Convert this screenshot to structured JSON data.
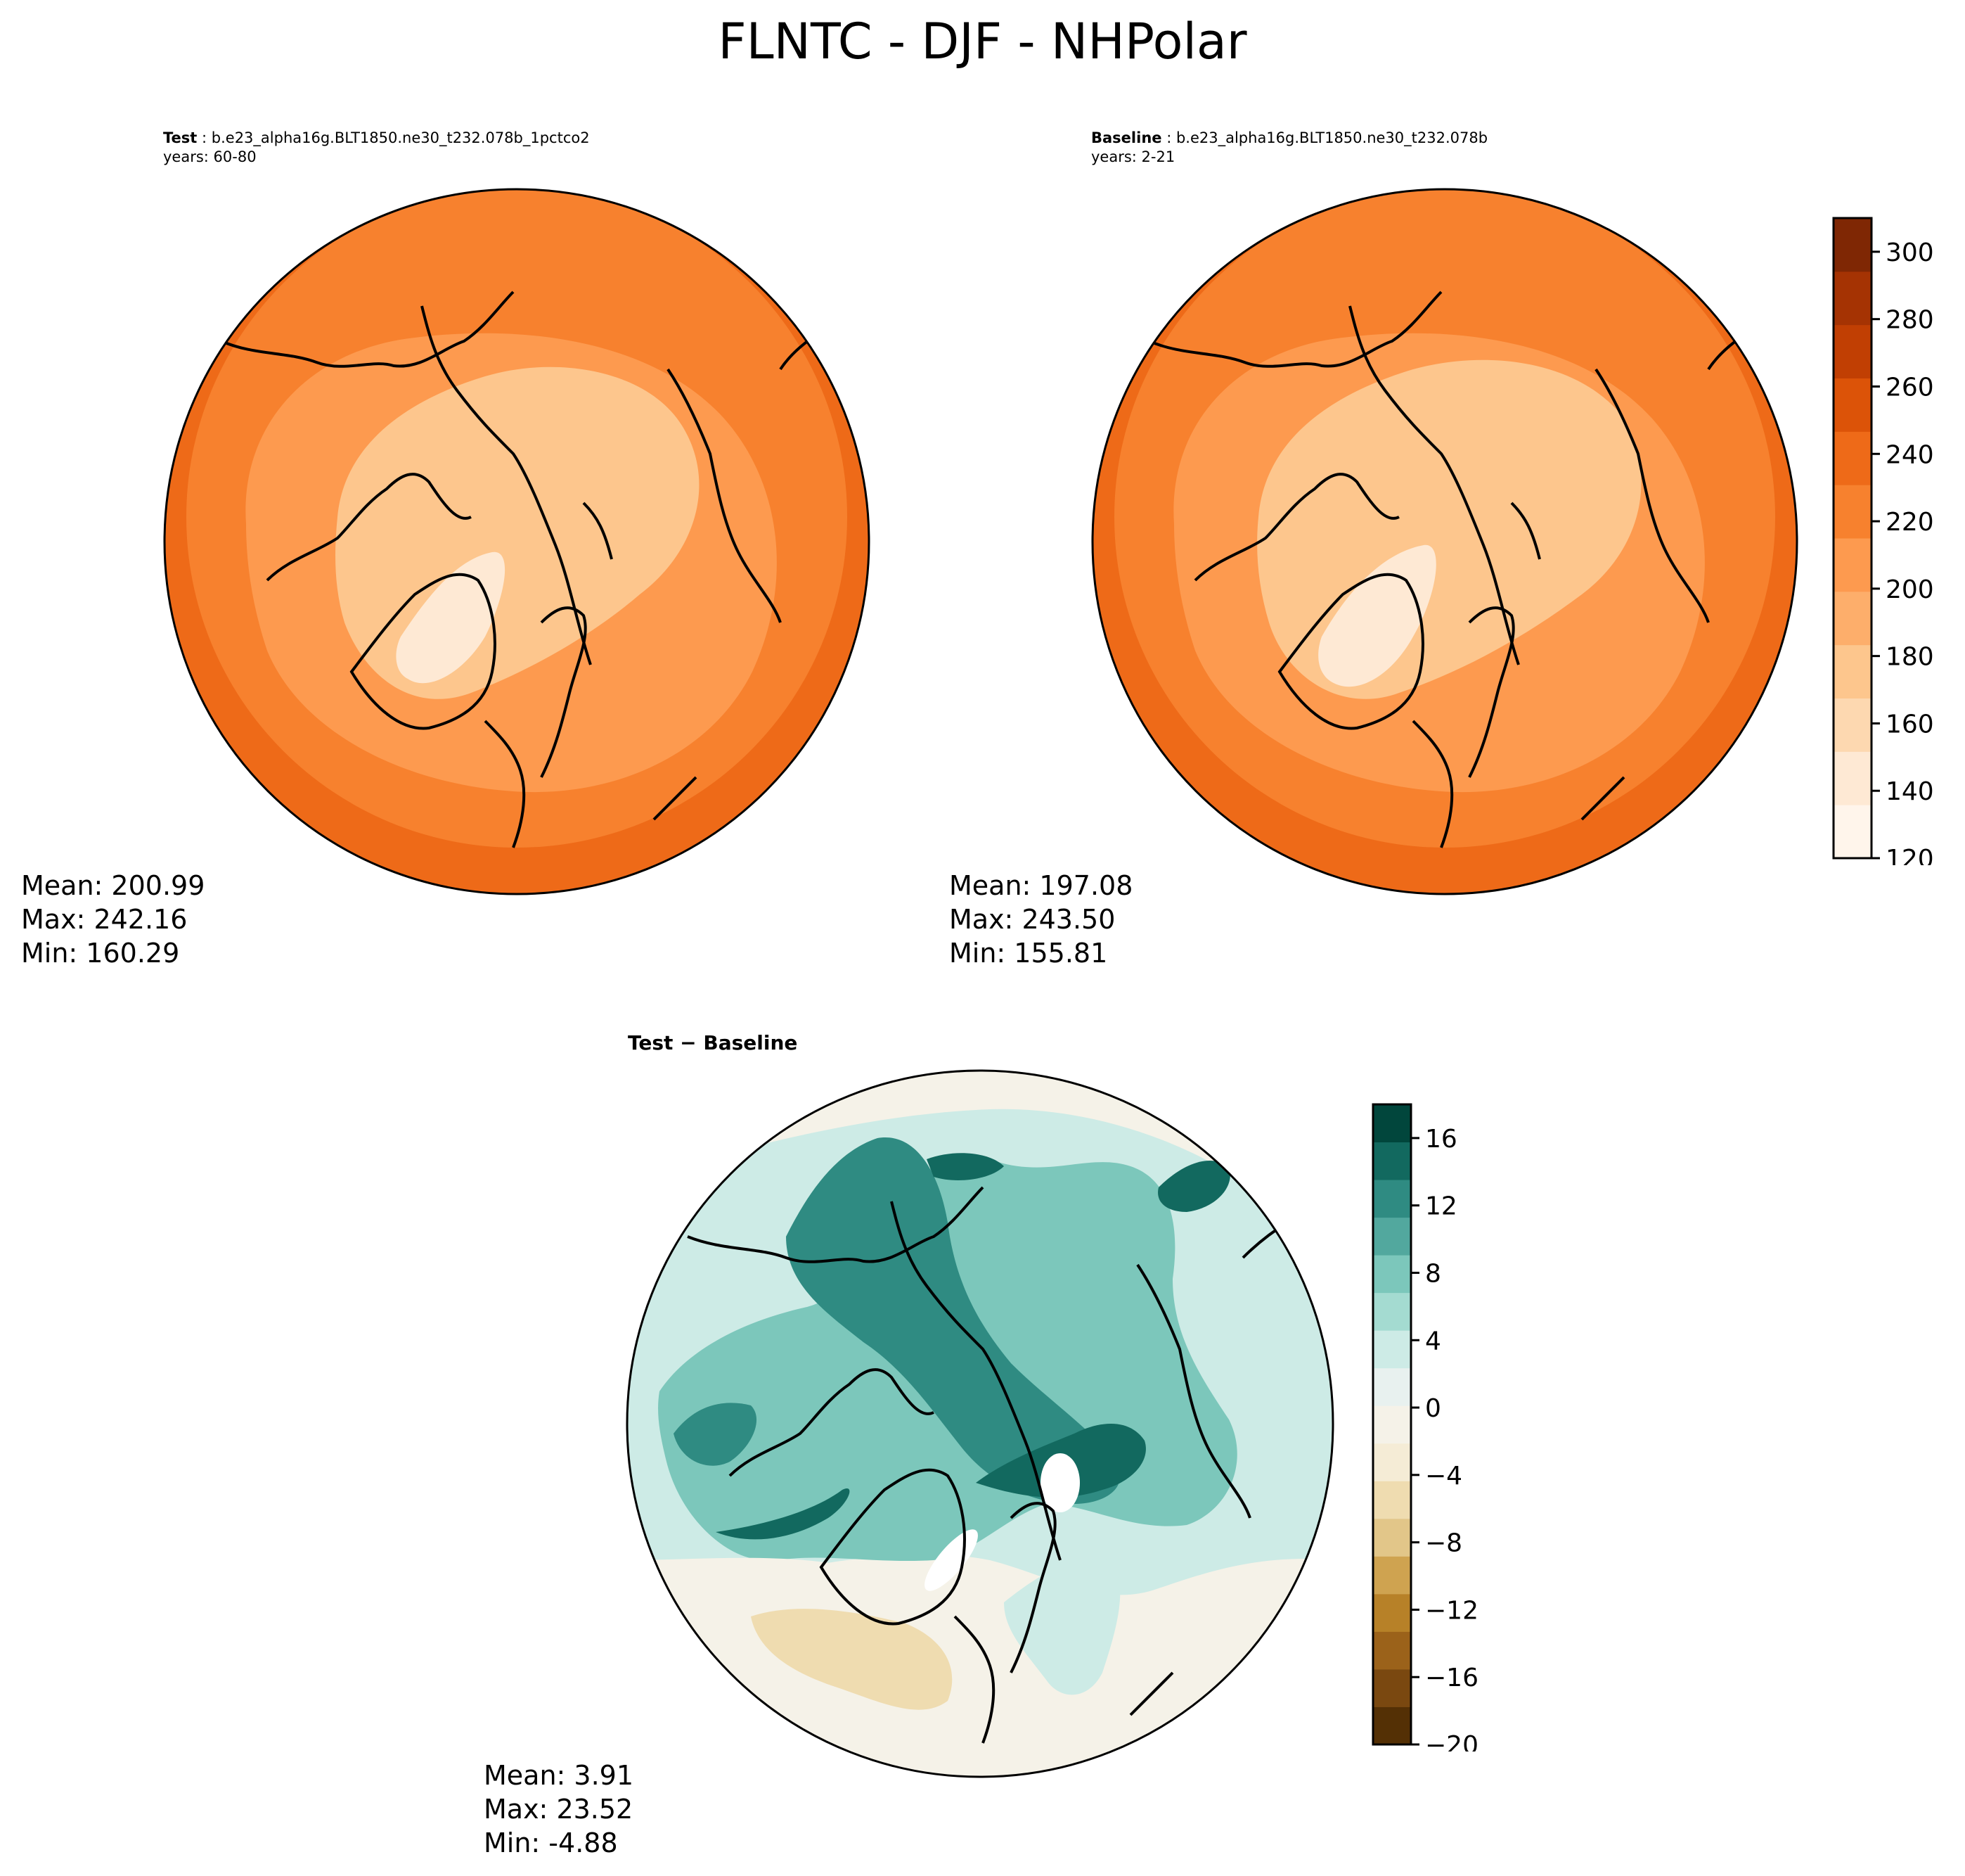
{
  "title": "FLNTC - DJF - NHPolar",
  "test_panel": {
    "label": "Test",
    "case": "b.e23_alpha16g.BLT1850.ne30_t232.078b_1pctco2",
    "years": "years: 60-80",
    "stats": {
      "mean": "Mean: 200.99",
      "max": "Max: 242.16",
      "min": "Min: 160.29"
    }
  },
  "baseline_panel": {
    "label": "Baseline",
    "case": "b.e23_alpha16g.BLT1850.ne30_t232.078b",
    "years": "years: 2-21",
    "stats": {
      "mean": "Mean: 197.08",
      "max": "Max: 243.50",
      "min": "Min: 155.81"
    }
  },
  "diff_panel": {
    "title": "Test − Baseline",
    "stats": {
      "mean": "Mean:  3.91",
      "max": "Max: 23.52",
      "min": "Min: -4.88"
    }
  },
  "colorbar_main": {
    "ticks": [
      "120",
      "140",
      "160",
      "180",
      "200",
      "220",
      "240",
      "260",
      "280",
      "300"
    ],
    "range": [
      120,
      310
    ],
    "colors": [
      "#fff5eb",
      "#fee9d4",
      "#fdd8b0",
      "#fdc68d",
      "#fdae6b",
      "#fd9a4f",
      "#f7812e",
      "#ee6a18",
      "#dc5308",
      "#c13f03",
      "#a53303",
      "#7f2704"
    ]
  },
  "colorbar_diff": {
    "ticks": [
      "16",
      "12",
      "8",
      "4",
      "0",
      "−4",
      "−8",
      "−12",
      "−16",
      "−20"
    ],
    "range": [
      -20,
      18
    ],
    "colors": [
      "#543005",
      "#7a4810",
      "#9b621a",
      "#b78128",
      "#cfa350",
      "#e2c689",
      "#efdcb0",
      "#f5ecd6",
      "#f5f2e8",
      "#e8f1ef",
      "#cdebe6",
      "#a4dbd1",
      "#7cc7bb",
      "#52a89e",
      "#2f8b82",
      "#12695f",
      "#01463c"
    ]
  },
  "map_colors": {
    "outer_band": "#ee6a18",
    "mid_band": "#f7812e",
    "inner_band": "#fd9a4f",
    "arctic": "#fdc68d",
    "greenland_core": "#fee9d4",
    "diff_background": "#f5f2e8",
    "diff_light": "#cdebe6",
    "diff_mid": "#7cc7bb",
    "diff_strong": "#2f8b82",
    "diff_dark": "#12695f",
    "diff_brown": "#efdcb0"
  }
}
